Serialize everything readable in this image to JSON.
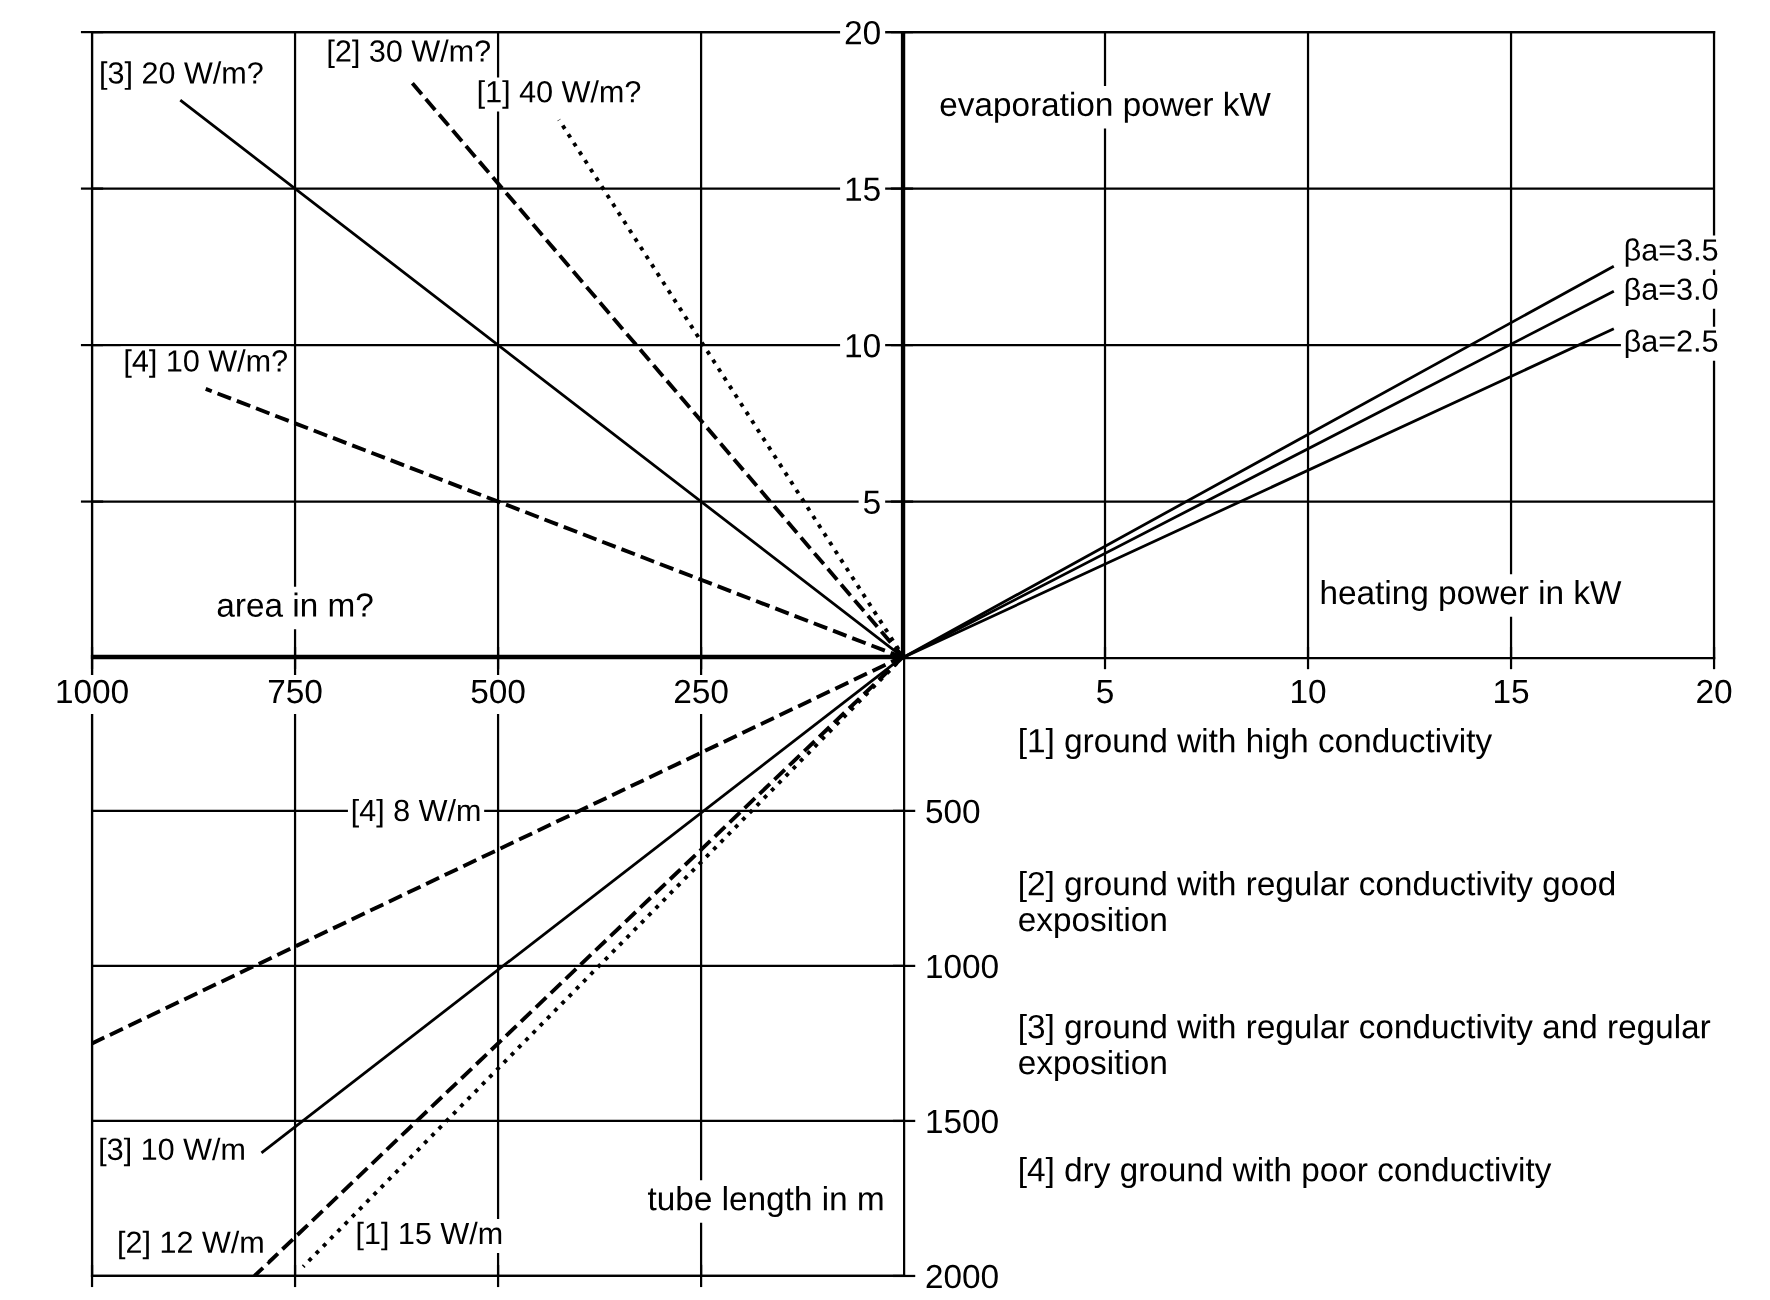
{
  "chart_data": [
    {
      "type": "line",
      "xlabel": "heating power in kW",
      "ylabel": "evaporation power kW",
      "xlim": [
        0,
        20
      ],
      "ylim": [
        0,
        20
      ],
      "xticks": [
        5,
        10,
        15,
        20
      ],
      "yticks": [
        5,
        10,
        15,
        20
      ],
      "grid": true,
      "series": [
        {
          "name": "βa=3.5",
          "color": "#000000",
          "line_style": "solid",
          "x": [
            0,
            17.5
          ],
          "values": [
            0,
            12.5
          ]
        },
        {
          "name": "βa=3.0",
          "color": "#000000",
          "line_style": "solid",
          "x": [
            0,
            17.5
          ],
          "values": [
            0,
            11.7
          ]
        },
        {
          "name": "βa=2.5",
          "color": "#000000",
          "line_style": "solid",
          "x": [
            0,
            17.5
          ],
          "values": [
            0,
            10.5
          ]
        }
      ]
    },
    {
      "type": "line",
      "xlabel": "area in m?",
      "xlim": [
        1000,
        0
      ],
      "ylim": [
        0,
        20
      ],
      "xticks": [
        1000,
        750,
        500,
        250
      ],
      "yticks": [
        5,
        10,
        15,
        20
      ],
      "grid": true,
      "tick_labels": "x",
      "series": [
        {
          "name": "[1] 40 W/m?",
          "color": "#000000",
          "line_style": "dotted",
          "x": [
            0,
            425
          ],
          "values": [
            0,
            17.2
          ]
        },
        {
          "name": "[2] 30 W/m?",
          "color": "#000000",
          "line_style": "dashed",
          "x": [
            0,
            610
          ],
          "values": [
            0,
            18.5
          ]
        },
        {
          "name": "[3] 20 W/m?",
          "color": "#000000",
          "line_style": "solid",
          "x": [
            0,
            890
          ],
          "values": [
            0,
            17.8
          ]
        },
        {
          "name": "[4] 10 W/m?",
          "color": "#000000",
          "line_style": "dashed",
          "x": [
            0,
            860
          ],
          "values": [
            0,
            8.6
          ]
        }
      ]
    },
    {
      "type": "line",
      "ylabel": "tube length in m",
      "xlim": [
        1000,
        0
      ],
      "ylim": [
        2000,
        0
      ],
      "xticks": [
        1000,
        750,
        500,
        250
      ],
      "yticks": [
        500,
        1000,
        1500,
        2000
      ],
      "grid": true,
      "tick_labels": "y",
      "annotations": [
        "[1] ground with high conductivity",
        "[2] ground with regular conductivity good exposition",
        "[3] ground with regular conductivity and regular exposition",
        "[4] dry ground with poor conductivity"
      ],
      "series": [
        {
          "name": "[1] 15 W/m",
          "color": "#000000",
          "line_style": "dotted",
          "x": [
            0,
            740
          ],
          "values": [
            0,
            1970
          ]
        },
        {
          "name": "[2] 12 W/m",
          "color": "#000000",
          "line_style": "dashed",
          "x": [
            0,
            800
          ],
          "values": [
            0,
            2000
          ]
        },
        {
          "name": "[3] 10 W/m",
          "color": "#000000",
          "line_style": "solid",
          "x": [
            0,
            790
          ],
          "values": [
            0,
            1600
          ]
        },
        {
          "name": "[4] 8 W/m",
          "color": "#000000",
          "line_style": "dashed",
          "x": [
            0,
            1000
          ],
          "values": [
            0,
            1250
          ]
        }
      ]
    }
  ]
}
